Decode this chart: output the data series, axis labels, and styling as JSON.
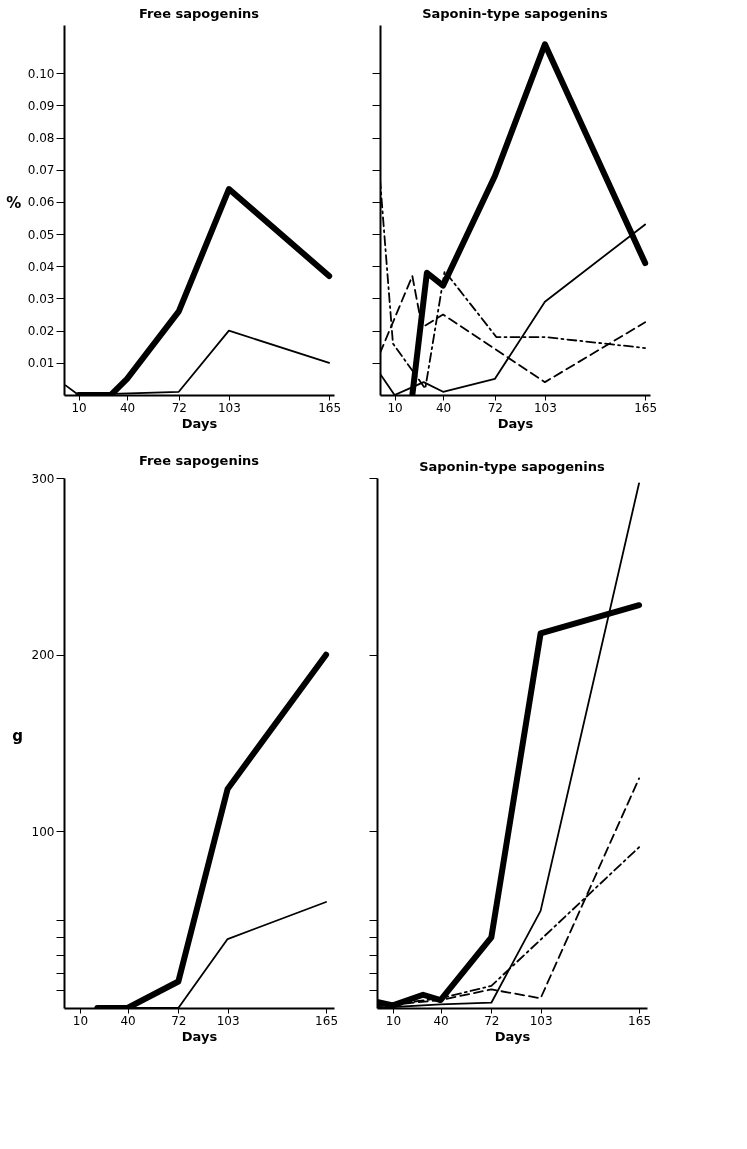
{
  "chart_data": [
    {
      "type": "line",
      "title": "Free sapogenins",
      "xlabel": "Days",
      "ylabel": "%",
      "xlim": [
        1,
        168
      ],
      "ylim": [
        0,
        0.115
      ],
      "xticks": [
        10,
        40,
        72,
        103,
        165
      ],
      "yticks": [
        0.01,
        0.02,
        0.03,
        0.04,
        0.05,
        0.06,
        0.07,
        0.08,
        0.09,
        {
          "value": 0.1,
          "label": "0.10"
        }
      ],
      "grid": false,
      "series": [
        {
          "color": "#000000",
          "line_style": "solid",
          "x": [
            10,
            30,
            40,
            72,
            103,
            165
          ],
          "values": [
            0,
            0,
            0.005,
            0.026,
            0.064,
            0.037
          ]
        },
        {
          "color": "#000000",
          "line_style": "solid",
          "x": [
            2,
            10,
            72,
            103,
            165
          ],
          "values": [
            0.003,
            0,
            0.001,
            0.02,
            0.01
          ]
        }
      ]
    },
    {
      "type": "line",
      "title": "Saponin-type sapogenins",
      "xlabel": "Days",
      "xlim": [
        1,
        168
      ],
      "ylim": [
        0,
        0.115
      ],
      "xticks": [
        10,
        40,
        72,
        103,
        165
      ],
      "yticks": [
        0.01,
        0.02,
        0.03,
        0.04,
        0.05,
        0.06,
        0.07,
        0.08,
        0.09,
        0.1
      ],
      "tick_labels": "x",
      "grid": false,
      "series": [
        {
          "color": "#000000",
          "line_style": "solid",
          "x": [
            21,
            30,
            40,
            72,
            103,
            165
          ],
          "values": [
            0,
            0.038,
            0.034,
            0.068,
            0.109,
            0.041
          ]
        },
        {
          "color": "#000000",
          "line_style": "solid",
          "x": [
            1,
            10,
            19,
            28,
            40,
            72,
            103,
            165
          ],
          "values": [
            0.0066,
            0,
            0.002,
            0.004,
            0.001,
            0.005,
            0.029,
            0.053
          ]
        },
        {
          "color": "#000000",
          "line_style": "dashed",
          "x": [
            1,
            21,
            27,
            40,
            103,
            165
          ],
          "values": [
            0.013,
            0.037,
            0.021,
            0.025,
            0.004,
            0.0226
          ]
        },
        {
          "color": "#000000",
          "line_style": "dashdot",
          "x": [
            1,
            9,
            29,
            41,
            73,
            103,
            165
          ],
          "values": [
            0.067,
            0.016,
            0.002,
            0.0385,
            0.018,
            0.018,
            0.0146
          ]
        }
      ]
    },
    {
      "type": "line",
      "title": "Free sapogenins",
      "xlabel": "Days",
      "ylabel": "g",
      "xlim": [
        0,
        170
      ],
      "ylim": [
        0,
        300
      ],
      "xticks": [
        10,
        40,
        72,
        103,
        165
      ],
      "yticks": [
        {
          "value": 10,
          "label": null
        },
        {
          "value": 20,
          "label": null
        },
        {
          "value": 30,
          "label": null
        },
        {
          "value": 40,
          "label": null
        },
        {
          "value": 50,
          "label": null
        },
        100,
        200,
        300
      ],
      "grid": false,
      "series": [
        {
          "color": "#000000",
          "line_style": "solid",
          "x": [
            21,
            40,
            72,
            103,
            165
          ],
          "values": [
            0,
            0,
            15,
            124,
            200
          ]
        },
        {
          "color": "#000000",
          "line_style": "solid",
          "x": [
            21,
            72,
            103,
            165
          ],
          "values": [
            0,
            0,
            39,
            60
          ]
        }
      ]
    },
    {
      "type": "line",
      "title": "Saponin-type sapogenins",
      "xlabel": "Days",
      "xlim": [
        0,
        170
      ],
      "ylim": [
        0,
        300
      ],
      "xticks": [
        10,
        40,
        72,
        103,
        165
      ],
      "yticks": [
        10,
        20,
        30,
        40,
        50,
        100,
        200,
        300
      ],
      "tick_labels": "x",
      "grid": false,
      "series": [
        {
          "color": "#000000",
          "line_style": "solid",
          "x": [
            0,
            10,
            29,
            40,
            72,
            103,
            165
          ],
          "values": [
            3.5,
            1.5,
            7.5,
            4.5,
            40,
            212,
            228
          ]
        },
        {
          "color": "#000000",
          "line_style": "solid",
          "x": [
            0,
            40,
            72,
            103,
            165
          ],
          "values": [
            0,
            2,
            3,
            55,
            297
          ]
        },
        {
          "color": "#000000",
          "line_style": "dashed",
          "x": [
            0,
            40,
            72,
            103,
            165
          ],
          "values": [
            1,
            4.5,
            10.5,
            5.5,
            130
          ]
        },
        {
          "color": "#000000",
          "line_style": "dashdot",
          "x": [
            0,
            40,
            72,
            165
          ],
          "values": [
            1,
            5.5,
            12.5,
            91
          ]
        }
      ]
    }
  ]
}
